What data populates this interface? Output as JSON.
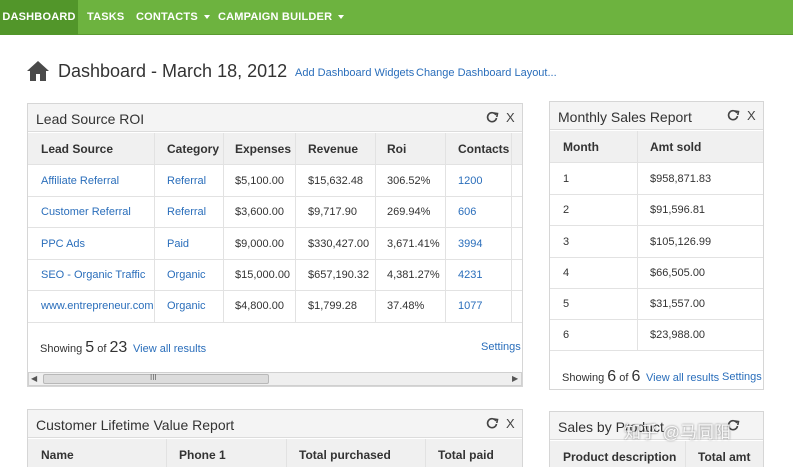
{
  "nav": {
    "items": [
      {
        "label": "DASHBOARD"
      },
      {
        "label": "TASKS"
      },
      {
        "label": "CONTACTS"
      },
      {
        "label": "CAMPAIGN BUILDER"
      }
    ]
  },
  "header": {
    "title": "Dashboard - March 18, 2012",
    "add_widgets": "Add Dashboard Widgets",
    "change_layout": "Change Dashboard Layout..."
  },
  "lead_roi": {
    "title": "Lead Source ROI",
    "columns": [
      "Lead Source",
      "Category",
      "Expenses",
      "Revenue",
      "Roi",
      "Contacts"
    ],
    "rows": [
      [
        "Affiliate Referral",
        "Referral",
        "$5,100.00",
        "$15,632.48",
        "306.52%",
        "1200"
      ],
      [
        "Customer Referral",
        "Referral",
        "$3,600.00",
        "$9,717.90",
        "269.94%",
        "606"
      ],
      [
        "PPC Ads",
        "Paid",
        "$9,000.00",
        "$330,427.00",
        "3,671.41%",
        "3994"
      ],
      [
        "SEO - Organic Traffic",
        "Organic",
        "$15,000.00",
        "$657,190.32",
        "4,381.27%",
        "4231"
      ],
      [
        "www.entrepreneur.com",
        "Organic",
        "$4,800.00",
        "$1,799.28",
        "37.48%",
        "1077"
      ]
    ],
    "showing_label": "Showing",
    "showing_count": "5",
    "of_label": "of",
    "total": "23",
    "view_all": "View all results",
    "settings": "Settings",
    "scroll_thumb_label": "III",
    "close": "X"
  },
  "monthly_sales": {
    "title": "Monthly Sales Report",
    "columns": [
      "Month",
      "Amt sold"
    ],
    "rows": [
      [
        "1",
        "$958,871.83"
      ],
      [
        "2",
        "$91,596.81"
      ],
      [
        "3",
        "$105,126.99"
      ],
      [
        "4",
        "$66,505.00"
      ],
      [
        "5",
        "$31,557.00"
      ],
      [
        "6",
        "$23,988.00"
      ]
    ],
    "showing_label": "Showing",
    "showing_count": "6",
    "of_label": "of",
    "total": "6",
    "view_all": "View all results",
    "settings": "Settings",
    "close": "X"
  },
  "clv": {
    "title": "Customer Lifetime Value Report",
    "columns": [
      "Name",
      "Phone 1",
      "Total purchased",
      "Total paid"
    ],
    "close": "X"
  },
  "sales_product": {
    "title": "Sales by Product",
    "columns": [
      "Product description",
      "Total amt"
    ]
  },
  "watermark": "知乎 @马同阳",
  "colors": {
    "nav_green": "#6db33f",
    "nav_active": "#52962a",
    "link_blue": "#2a6ebb"
  }
}
